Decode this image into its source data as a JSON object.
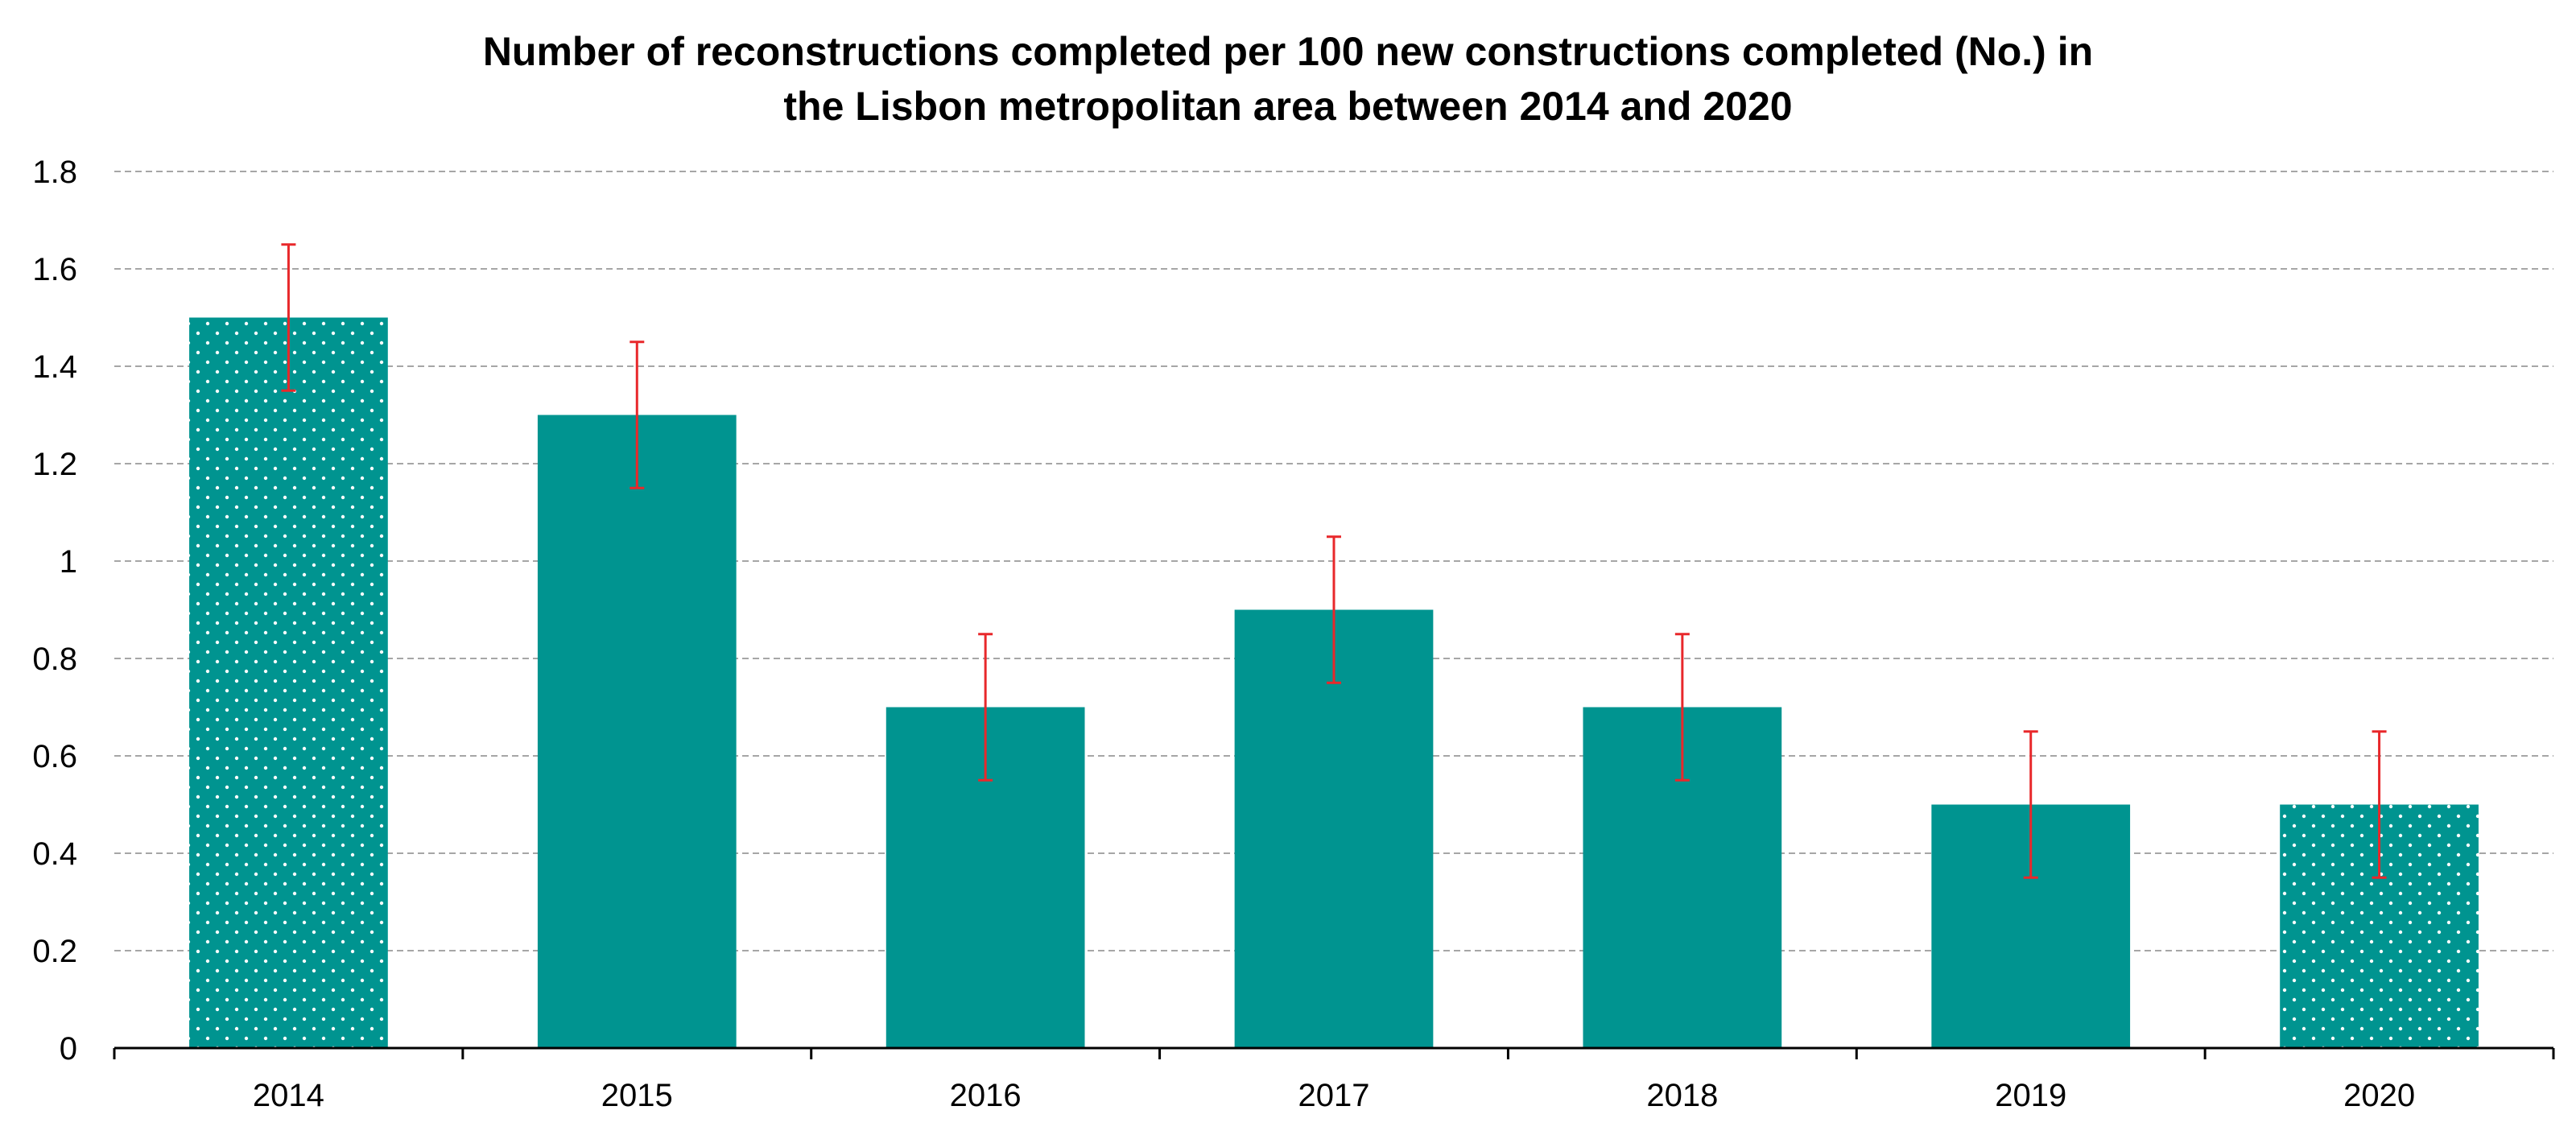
{
  "chart_data": {
    "type": "bar",
    "title": "Number of reconstructions completed per 100 new constructions completed (No.) in the Lisbon metropolitan area between 2014 and 2020",
    "title_lines": [
      "Number of reconstructions completed per 100 new constructions completed (No.) in",
      "the Lisbon metropolitan area between 2014 and 2020"
    ],
    "xlabel": "",
    "ylabel": "",
    "categories": [
      "2014",
      "2015",
      "2016",
      "2017",
      "2018",
      "2019",
      "2020"
    ],
    "values": [
      1.5,
      1.3,
      0.7,
      0.9,
      0.7,
      0.5,
      0.5
    ],
    "error_bars": {
      "lower": [
        1.35,
        1.15,
        0.55,
        0.75,
        0.55,
        0.35,
        0.35
      ],
      "upper": [
        1.65,
        1.45,
        0.85,
        1.05,
        0.85,
        0.65,
        0.65
      ]
    },
    "dotted_pattern": [
      true,
      false,
      false,
      false,
      false,
      false,
      true
    ],
    "ylim": [
      0,
      1.8
    ],
    "yticks": [
      0,
      0.2,
      0.4,
      0.6,
      0.8,
      1,
      1.2,
      1.4,
      1.6,
      1.8
    ],
    "ytick_labels": [
      "0",
      "0.2",
      "0.4",
      "0.6",
      "0.8",
      "1",
      "1.2",
      "1.4",
      "1.6",
      "1.8"
    ],
    "grid": true,
    "legend": "none",
    "colors": {
      "bar": "#009490",
      "error_bar": "#e8282b",
      "grid": "#a6a6a6",
      "axis": "#000000",
      "dot": "#ffffff"
    }
  }
}
